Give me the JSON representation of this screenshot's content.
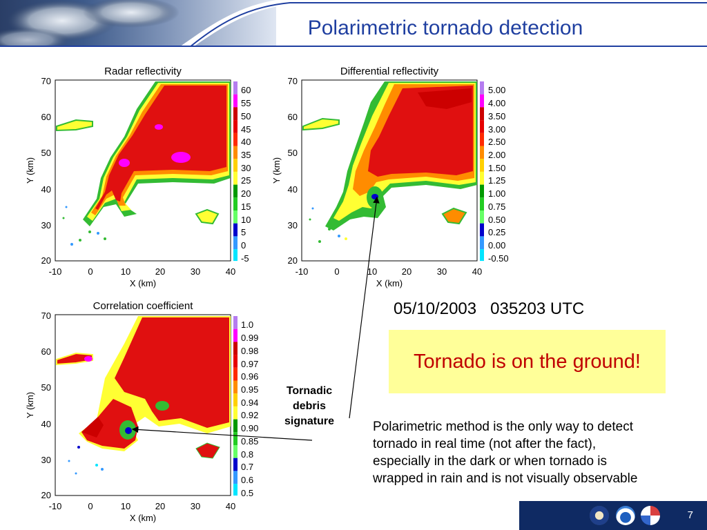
{
  "slide": {
    "title": "Polarimetric tornado detection",
    "date_time": "05/10/2003   035203 UTC",
    "callout": "Tornado is on the ground!",
    "annotation": "Tornadic debris signature",
    "annotation_lines": [
      "Tornadic",
      "debris",
      "signature"
    ],
    "body": "Polarimetric method is the only way to detect tornado in real time (not after the fact), especially in the dark or when tornado is wrapped in rain and is not visually observable",
    "page_number": "7"
  },
  "panels": {
    "reflectivity": {
      "title": "Radar reflectivity",
      "xlabel": "X (km)",
      "ylabel": "Y (km)",
      "xticks": [
        "-10",
        "0",
        "10",
        "20",
        "30",
        "40"
      ],
      "yticks": [
        "70",
        "60",
        "50",
        "40",
        "30",
        "20"
      ],
      "colorbar": [
        "60",
        "55",
        "50",
        "45",
        "40",
        "35",
        "30",
        "25",
        "20",
        "15",
        "10",
        "5",
        "0",
        "-5"
      ]
    },
    "zdr": {
      "title": "Differential reflectivity",
      "xlabel": "X (km)",
      "ylabel": "Y (km)",
      "xticks": [
        "-10",
        "0",
        "10",
        "20",
        "30",
        "40"
      ],
      "yticks": [
        "70",
        "60",
        "50",
        "40",
        "30",
        "20"
      ],
      "colorbar": [
        "5.00",
        "4.00",
        "3.50",
        "3.00",
        "2.50",
        "2.00",
        "1.50",
        "1.25",
        "1.00",
        "0.75",
        "0.50",
        "0.25",
        "0.00",
        "-0.50"
      ]
    },
    "correlation": {
      "title": "Correlation coefficient",
      "xlabel": "X (km)",
      "ylabel": "Y (km)",
      "xticks": [
        "-10",
        "0",
        "10",
        "20",
        "30",
        "40"
      ],
      "yticks": [
        "70",
        "60",
        "50",
        "40",
        "30",
        "20"
      ],
      "colorbar": [
        "1.0",
        "0.99",
        "0.98",
        "0.97",
        "0.96",
        "0.95",
        "0.94",
        "0.92",
        "0.90",
        "0.85",
        "0.8",
        "0.7",
        "0.6",
        "0.5"
      ]
    }
  },
  "colors": {
    "title": "#1f3fa0",
    "callout_bg": "#ffff99",
    "callout_text": "#c00000",
    "footer_bg": "#0f2a63",
    "scale": [
      "#b57cf0",
      "#ff00ff",
      "#cc0000",
      "#e60000",
      "#ff2a00",
      "#ff8c00",
      "#ffd000",
      "#ffff33",
      "#009900",
      "#22cc22",
      "#66ff66",
      "#0000cc",
      "#3399ff",
      "#00e5ff"
    ]
  },
  "icons": [
    "commerce-seal-icon",
    "noaa-logo-icon",
    "nws-logo-icon"
  ]
}
